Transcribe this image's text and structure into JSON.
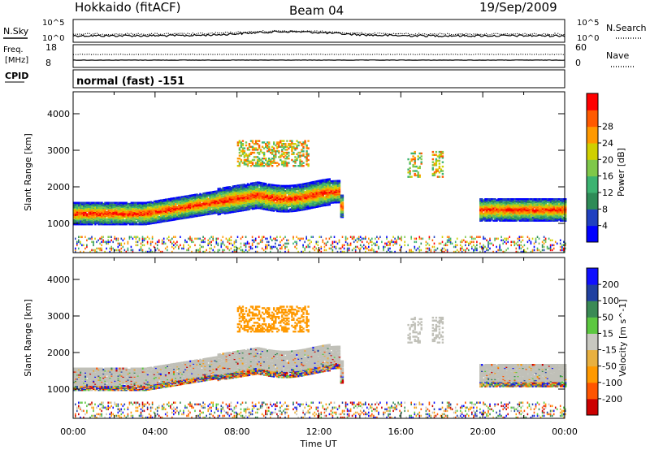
{
  "header": {
    "station": "Hokkaido (fitACF)",
    "beam": "Beam 04",
    "date": "19/Sep/2009"
  },
  "top_panels": {
    "nsky_label": "N.Sky",
    "nsky_scale": [
      "10^5",
      "10^0"
    ],
    "nsearch_label": "N.Search",
    "freq_label_1": "Freq.",
    "freq_label_2": "[MHz]",
    "freq_ticks": [
      "18",
      "8"
    ],
    "nave_label": "Nave",
    "nave_ticks": [
      "60",
      "0"
    ],
    "cpid_label": "CPID",
    "cpid_value": "normal (fast) -151"
  },
  "colors": {
    "power_scale": [
      "#0000ff",
      "#2040c0",
      "#2e8b57",
      "#3cb371",
      "#7fc84a",
      "#d0d000",
      "#ff9900",
      "#ff5a00",
      "#ff0000"
    ],
    "velocity_scale": [
      "#cc0000",
      "#ff5500",
      "#ff9900",
      "#e8b040",
      "#c8c8c0",
      "#5cc840",
      "#3a8a55",
      "#2040a0",
      "#1010ff"
    ],
    "ground_scatter": "#c0c0b8"
  },
  "chart_data": [
    {
      "type": "heatmap",
      "title": "",
      "xlabel": "Time UT",
      "ylabel": "Slant Range [km]",
      "x_ticks": [
        "00:00",
        "04:00",
        "08:00",
        "12:00",
        "16:00",
        "20:00",
        "00:00"
      ],
      "y_ticks": [
        1000,
        2000,
        3000,
        4000
      ],
      "xlim_hours": [
        0,
        24
      ],
      "ylim_km": [
        200,
        4600
      ],
      "colorbar_label": "Power [dB]",
      "colorbar_ticks": [
        4,
        8,
        12,
        16,
        20,
        24,
        28
      ],
      "colorbar_range": [
        0,
        32
      ]
    },
    {
      "type": "heatmap",
      "title": "",
      "xlabel": "Time UT",
      "ylabel": "Slant Range [km]",
      "x_ticks": [
        "00:00",
        "04:00",
        "08:00",
        "12:00",
        "16:00",
        "20:00",
        "00:00"
      ],
      "y_ticks": [
        1000,
        2000,
        3000,
        4000
      ],
      "xlim_hours": [
        0,
        24
      ],
      "ylim_km": [
        200,
        4600
      ],
      "colorbar_label": "Velocity [m s^-1]",
      "colorbar_ticks": [
        200,
        100,
        50,
        15,
        -15,
        -50,
        -100,
        -200
      ]
    }
  ]
}
